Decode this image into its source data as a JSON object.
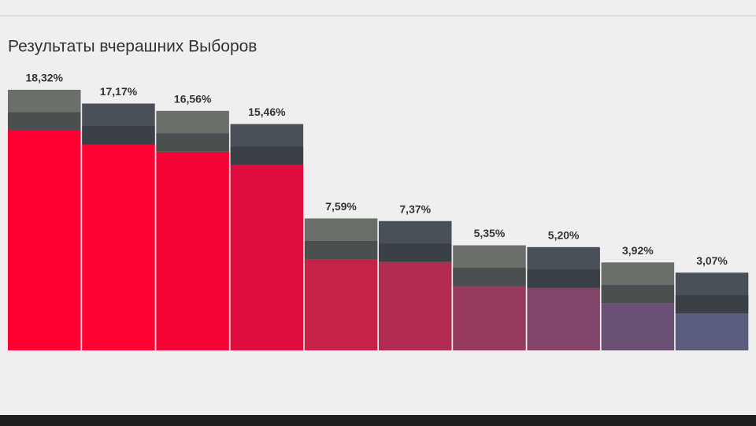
{
  "chart_data": {
    "type": "bar",
    "title": "Результаты вчерашних Выборов",
    "values": [
      18.32,
      17.17,
      16.56,
      15.46,
      7.59,
      7.37,
      5.35,
      5.2,
      3.92,
      3.07
    ],
    "value_labels": [
      "18,32%",
      "17,17%",
      "16,56%",
      "15,46%",
      "7,59%",
      "7,37%",
      "5,35%",
      "5,20%",
      "3,92%",
      "3,07%"
    ],
    "colors": [
      "#ff0033",
      "#fd0334",
      "#f40536",
      "#e10c3e",
      "#c62248",
      "#b22b50",
      "#973b5e",
      "#824569",
      "#6a5074",
      "#5a5d7e"
    ]
  }
}
